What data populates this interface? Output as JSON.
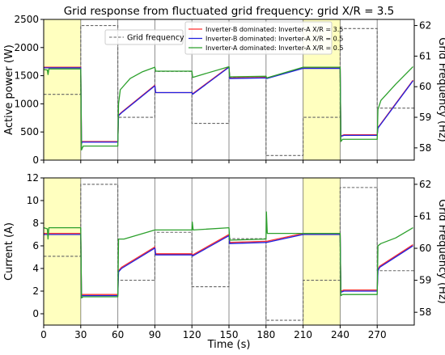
{
  "chart_data": {
    "type": "line",
    "title": "Grid response from fluctuated grid frequency: grid X/R = 3.5",
    "xlabel": "Time (s)",
    "xlim": [
      0,
      300
    ],
    "x_ticks": [
      0,
      30,
      60,
      90,
      120,
      150,
      180,
      210,
      240,
      270
    ],
    "highlight_regions": [
      [
        0,
        30
      ],
      [
        210,
        240
      ]
    ],
    "highlight_color": "#ffffbf",
    "legend_top": {
      "label": "Grid frequency",
      "placement": "upper-left"
    },
    "legend_main": {
      "placement": "upper-right"
    },
    "frequency": {
      "ylabel": "Grid Frequency (Hz)",
      "ylim": [
        57.6,
        62.2
      ],
      "color": "#666666",
      "steps": [
        [
          0,
          59.75
        ],
        [
          30,
          62.0
        ],
        [
          60,
          59.0
        ],
        [
          90,
          60.5
        ],
        [
          120,
          58.8
        ],
        [
          150,
          60.3
        ],
        [
          180,
          57.75
        ],
        [
          210,
          59.0
        ],
        [
          240,
          61.9
        ],
        [
          270,
          59.3
        ],
        [
          300,
          59.3
        ]
      ]
    },
    "panels": [
      {
        "name": "power",
        "ylabel": "Active power (W)",
        "ylim": [
          0,
          2500
        ],
        "y_ticks": [
          0,
          500,
          1000,
          1500,
          2000,
          2500
        ],
        "freq_ticks": [
          58,
          59,
          60,
          61,
          62
        ],
        "series": [
          {
            "name": "Inverter-B dominated: Inverter-A X/R = 3.5",
            "color": "#ff3030",
            "points": [
              [
                0,
                1650
              ],
              [
                30,
                1650
              ],
              [
                30.6,
                300
              ],
              [
                31,
                330
              ],
              [
                60,
                330
              ],
              [
                60.6,
                800
              ],
              [
                63,
                850
              ],
              [
                90,
                1330
              ],
              [
                90.6,
                1200
              ],
              [
                120,
                1200
              ],
              [
                120.6,
                1180
              ],
              [
                150,
                1660
              ],
              [
                150.6,
                1460
              ],
              [
                180,
                1470
              ],
              [
                180.6,
                1460
              ],
              [
                210,
                1640
              ],
              [
                240,
                1640
              ],
              [
                240.6,
                430
              ],
              [
                243,
                450
              ],
              [
                270,
                450
              ],
              [
                270.6,
                580
              ],
              [
                272,
                620
              ],
              [
                299,
                1420
              ]
            ]
          },
          {
            "name": "Inverter-B dominated: Inverter-A X/R = 0.5",
            "color": "#2020e0",
            "points": [
              [
                0,
                1640
              ],
              [
                30,
                1640
              ],
              [
                30.6,
                290
              ],
              [
                31,
                320
              ],
              [
                60,
                320
              ],
              [
                60.6,
                790
              ],
              [
                63,
                840
              ],
              [
                90,
                1320
              ],
              [
                90.6,
                1200
              ],
              [
                120,
                1200
              ],
              [
                120.6,
                1170
              ],
              [
                150,
                1650
              ],
              [
                150.6,
                1450
              ],
              [
                180,
                1460
              ],
              [
                180.6,
                1450
              ],
              [
                210,
                1630
              ],
              [
                240,
                1630
              ],
              [
                240.6,
                420
              ],
              [
                243,
                440
              ],
              [
                270,
                440
              ],
              [
                270.6,
                570
              ],
              [
                272,
                610
              ],
              [
                299,
                1410
              ]
            ]
          },
          {
            "name": "Inverter-A dominated: Inverter-A X/R = 0.5",
            "color": "#2ca02c",
            "points": [
              [
                0,
                1610
              ],
              [
                3,
                1600
              ],
              [
                3.5,
                1520
              ],
              [
                4.2,
                1620
              ],
              [
                30,
                1620
              ],
              [
                30.6,
                180
              ],
              [
                32,
                250
              ],
              [
                60,
                250
              ],
              [
                60.6,
                1000
              ],
              [
                62,
                1250
              ],
              [
                70,
                1450
              ],
              [
                80,
                1570
              ],
              [
                90,
                1650
              ],
              [
                90.6,
                1580
              ],
              [
                120,
                1580
              ],
              [
                120.6,
                1470
              ],
              [
                150,
                1660
              ],
              [
                150.6,
                1480
              ],
              [
                180,
                1490
              ],
              [
                180.6,
                1460
              ],
              [
                210,
                1650
              ],
              [
                240,
                1650
              ],
              [
                240.6,
                330
              ],
              [
                242,
                370
              ],
              [
                270,
                370
              ],
              [
                270.6,
                900
              ],
              [
                273,
                1060
              ],
              [
                285,
                1350
              ],
              [
                299,
                1660
              ]
            ]
          }
        ]
      },
      {
        "name": "current",
        "ylabel": "Current (A)",
        "ylim": [
          -1,
          12
        ],
        "y_ticks": [
          0,
          2,
          4,
          6,
          8,
          10,
          12
        ],
        "freq_ticks": [
          58,
          59,
          60,
          61,
          62
        ],
        "series": [
          {
            "name": "Inverter-B dominated: Inverter-A X/R = 3.5",
            "color": "#ff3030",
            "points": [
              [
                0,
                7.1
              ],
              [
                30,
                7.1
              ],
              [
                30.6,
                1.5
              ],
              [
                31,
                1.7
              ],
              [
                60,
                1.7
              ],
              [
                60.6,
                3.8
              ],
              [
                63,
                4.1
              ],
              [
                90,
                5.9
              ],
              [
                90.6,
                5.3
              ],
              [
                120,
                5.3
              ],
              [
                120.6,
                5.2
              ],
              [
                150,
                7.0
              ],
              [
                150.6,
                6.3
              ],
              [
                180,
                6.4
              ],
              [
                180.6,
                6.4
              ],
              [
                210,
                7.1
              ],
              [
                240,
                7.1
              ],
              [
                240.6,
                2.0
              ],
              [
                243,
                2.1
              ],
              [
                270,
                2.1
              ],
              [
                270.6,
                3.9
              ],
              [
                272,
                4.2
              ],
              [
                299,
                6.1
              ]
            ]
          },
          {
            "name": "Inverter-B dominated: Inverter-A X/R = 0.5",
            "color": "#2020e0",
            "points": [
              [
                0,
                7.0
              ],
              [
                30,
                7.0
              ],
              [
                30.6,
                1.4
              ],
              [
                31,
                1.6
              ],
              [
                60,
                1.6
              ],
              [
                60.6,
                3.7
              ],
              [
                63,
                4.0
              ],
              [
                90,
                5.8
              ],
              [
                90.6,
                5.2
              ],
              [
                120,
                5.2
              ],
              [
                120.6,
                5.1
              ],
              [
                150,
                6.9
              ],
              [
                150.6,
                6.2
              ],
              [
                180,
                6.3
              ],
              [
                180.6,
                6.3
              ],
              [
                210,
                7.0
              ],
              [
                240,
                7.0
              ],
              [
                240.6,
                1.9
              ],
              [
                243,
                2.0
              ],
              [
                270,
                2.0
              ],
              [
                270.6,
                3.8
              ],
              [
                272,
                4.1
              ],
              [
                299,
                6.0
              ]
            ]
          },
          {
            "name": "Inverter-A dominated: Inverter-A X/R = 0.5",
            "color": "#2ca02c",
            "points": [
              [
                0,
                7.6
              ],
              [
                3,
                7.5
              ],
              [
                3.5,
                6.6
              ],
              [
                4.2,
                7.6
              ],
              [
                30,
                7.6
              ],
              [
                30.6,
                1.4
              ],
              [
                32,
                1.5
              ],
              [
                60,
                1.5
              ],
              [
                60.6,
                6.6
              ],
              [
                65,
                6.6
              ],
              [
                90,
                7.4
              ],
              [
                90.6,
                7.4
              ],
              [
                120,
                7.4
              ],
              [
                120.3,
                8.1
              ],
              [
                121,
                7.4
              ],
              [
                150,
                7.6
              ],
              [
                150.6,
                6.5
              ],
              [
                180,
                6.6
              ],
              [
                180.3,
                9.0
              ],
              [
                181,
                7.1
              ],
              [
                210,
                7.1
              ],
              [
                240,
                7.1
              ],
              [
                240.6,
                1.6
              ],
              [
                242,
                1.7
              ],
              [
                270,
                1.7
              ],
              [
                270.6,
                6.0
              ],
              [
                273,
                6.2
              ],
              [
                285,
                6.7
              ],
              [
                299,
                7.6
              ]
            ]
          }
        ]
      }
    ]
  }
}
